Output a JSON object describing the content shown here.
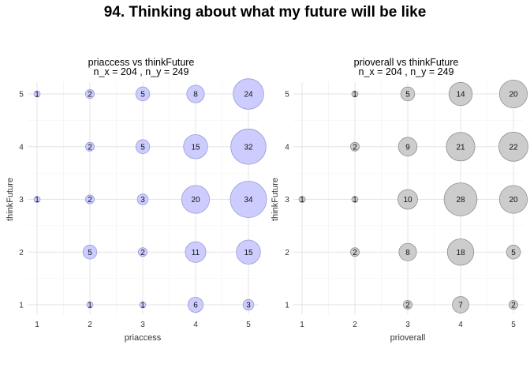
{
  "figure": {
    "title": "94. Thinking about what my future will be like"
  },
  "chart_data": [
    {
      "type": "scatter",
      "title": "priaccess vs thinkFuture",
      "subtitle": "n_x = 204 , n_y = 249",
      "xlabel": "priaccess",
      "ylabel": "thinkFuture",
      "x_ticks": [
        "1",
        "2",
        "3",
        "4",
        "5"
      ],
      "y_ticks": [
        "1",
        "2",
        "3",
        "4",
        "5"
      ],
      "xlim": [
        1,
        5
      ],
      "ylim": [
        1,
        5
      ],
      "grid": true,
      "bubble_fill": "#ccccff",
      "bubble_stroke": "#9a9ad8",
      "points": [
        {
          "x": 1,
          "y": 5,
          "n": 1
        },
        {
          "x": 2,
          "y": 5,
          "n": 2
        },
        {
          "x": 3,
          "y": 5,
          "n": 5
        },
        {
          "x": 4,
          "y": 5,
          "n": 8
        },
        {
          "x": 5,
          "y": 5,
          "n": 24
        },
        {
          "x": 2,
          "y": 4,
          "n": 2
        },
        {
          "x": 3,
          "y": 4,
          "n": 5
        },
        {
          "x": 4,
          "y": 4,
          "n": 15
        },
        {
          "x": 5,
          "y": 4,
          "n": 32
        },
        {
          "x": 1,
          "y": 3,
          "n": 1
        },
        {
          "x": 2,
          "y": 3,
          "n": 2
        },
        {
          "x": 3,
          "y": 3,
          "n": 3
        },
        {
          "x": 4,
          "y": 3,
          "n": 20
        },
        {
          "x": 5,
          "y": 3,
          "n": 34
        },
        {
          "x": 2,
          "y": 2,
          "n": 5
        },
        {
          "x": 3,
          "y": 2,
          "n": 2
        },
        {
          "x": 4,
          "y": 2,
          "n": 11
        },
        {
          "x": 5,
          "y": 2,
          "n": 15
        },
        {
          "x": 2,
          "y": 1,
          "n": 1
        },
        {
          "x": 3,
          "y": 1,
          "n": 1
        },
        {
          "x": 4,
          "y": 1,
          "n": 6
        },
        {
          "x": 5,
          "y": 1,
          "n": 3
        }
      ]
    },
    {
      "type": "scatter",
      "title": "prioverall vs thinkFuture",
      "subtitle": "n_x = 204 , n_y = 249",
      "xlabel": "prioverall",
      "ylabel": "thinkFuture",
      "x_ticks": [
        "1",
        "2",
        "3",
        "4",
        "5"
      ],
      "y_ticks": [
        "1",
        "2",
        "3",
        "4",
        "5"
      ],
      "xlim": [
        1,
        5
      ],
      "ylim": [
        1,
        5
      ],
      "grid": true,
      "bubble_fill": "#cccccc",
      "bubble_stroke": "#8f8f8f",
      "points": [
        {
          "x": 2,
          "y": 5,
          "n": 1
        },
        {
          "x": 3,
          "y": 5,
          "n": 5
        },
        {
          "x": 4,
          "y": 5,
          "n": 14
        },
        {
          "x": 5,
          "y": 5,
          "n": 20
        },
        {
          "x": 2,
          "y": 4,
          "n": 2
        },
        {
          "x": 3,
          "y": 4,
          "n": 9
        },
        {
          "x": 4,
          "y": 4,
          "n": 21
        },
        {
          "x": 5,
          "y": 4,
          "n": 22
        },
        {
          "x": 1,
          "y": 3,
          "n": 1
        },
        {
          "x": 2,
          "y": 3,
          "n": 1
        },
        {
          "x": 3,
          "y": 3,
          "n": 10
        },
        {
          "x": 4,
          "y": 3,
          "n": 28
        },
        {
          "x": 5,
          "y": 3,
          "n": 20
        },
        {
          "x": 2,
          "y": 2,
          "n": 2
        },
        {
          "x": 3,
          "y": 2,
          "n": 8
        },
        {
          "x": 4,
          "y": 2,
          "n": 18
        },
        {
          "x": 5,
          "y": 2,
          "n": 5
        },
        {
          "x": 3,
          "y": 1,
          "n": 2
        },
        {
          "x": 4,
          "y": 1,
          "n": 7
        },
        {
          "x": 5,
          "y": 1,
          "n": 2
        }
      ]
    }
  ]
}
